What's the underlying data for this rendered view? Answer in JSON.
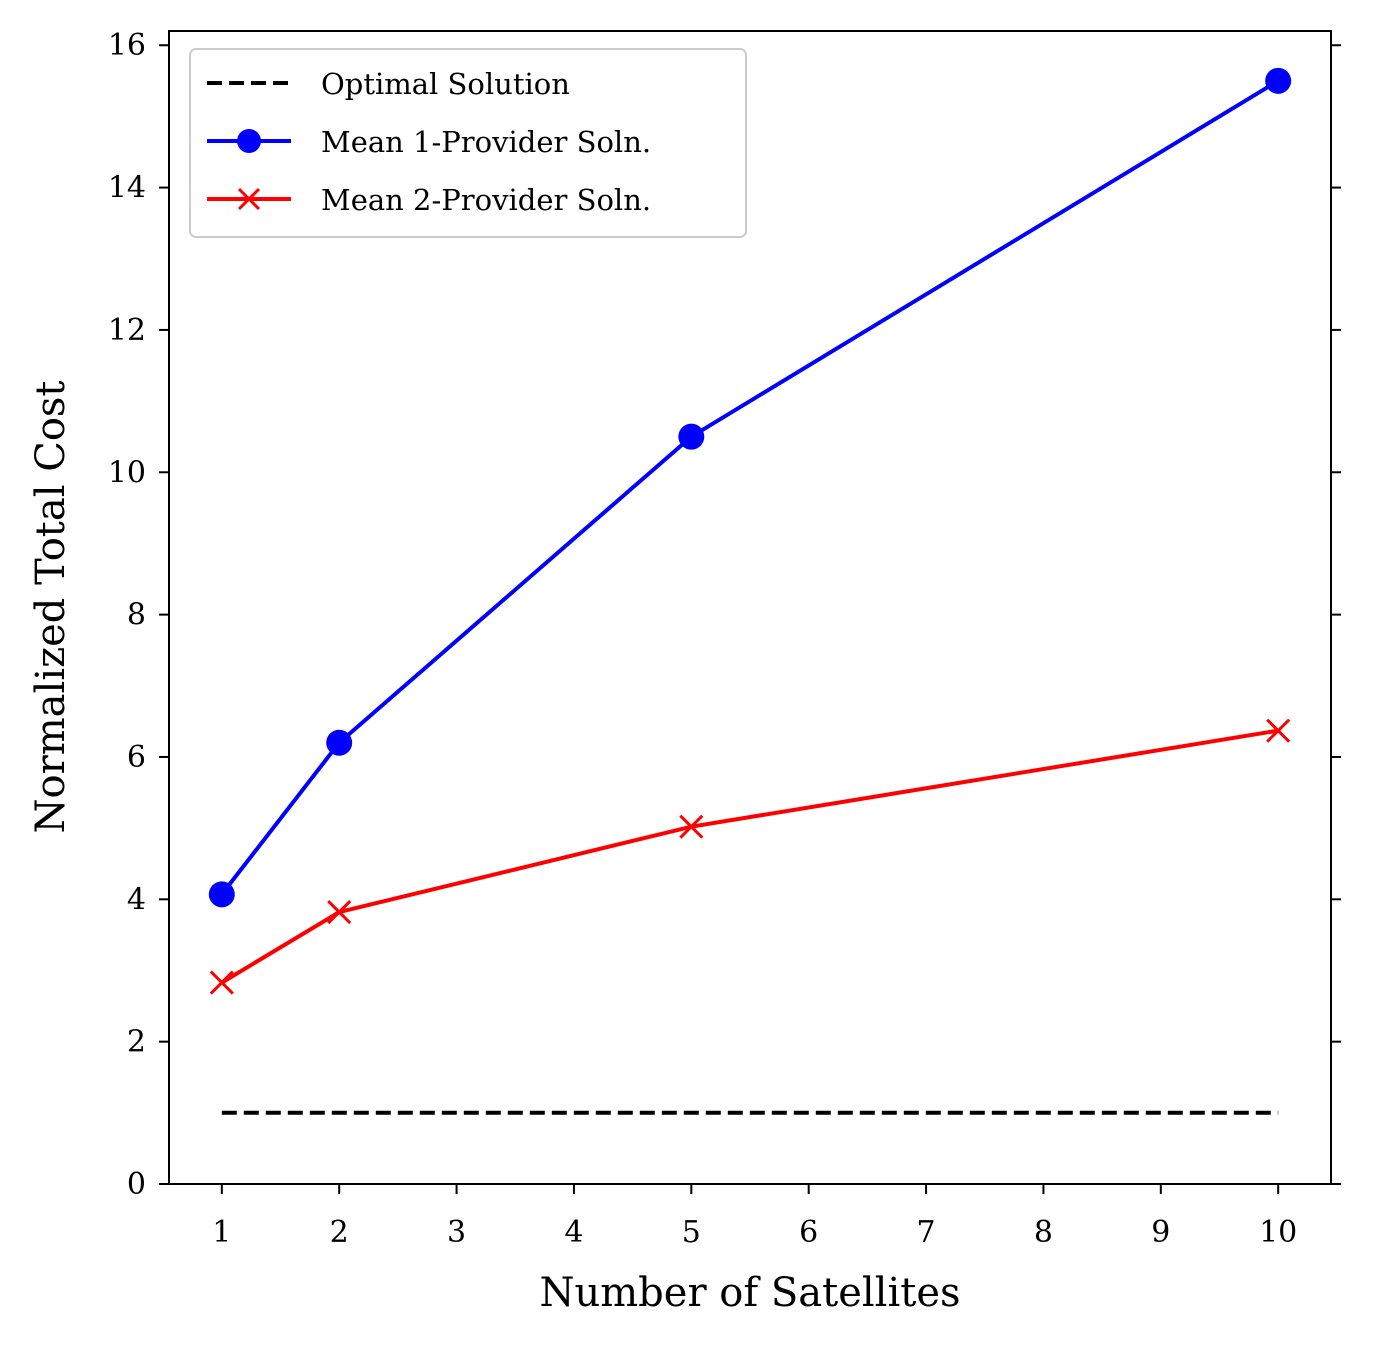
{
  "chart_data": {
    "type": "line",
    "xlabel": "Number of Satellites",
    "ylabel": "Normalized Total Cost",
    "xlim": [
      0.55,
      10.45
    ],
    "ylim": [
      0,
      16.2
    ],
    "xticks": [
      1,
      2,
      3,
      4,
      5,
      6,
      7,
      8,
      9,
      10
    ],
    "xtick_labels": [
      "1",
      "2",
      "3",
      "4",
      "5",
      "6",
      "7",
      "8",
      "9",
      "10"
    ],
    "yticks": [
      0,
      2,
      4,
      6,
      8,
      10,
      12,
      14,
      16
    ],
    "ytick_labels": [
      "0",
      "2",
      "4",
      "6",
      "8",
      "10",
      "12",
      "14",
      "16"
    ],
    "legend_position": "top-left",
    "series": [
      {
        "name": "Optimal Solution",
        "color": "#000000",
        "style": "dashed",
        "marker": "none",
        "x": [
          1,
          10
        ],
        "y": [
          1.0,
          1.0
        ]
      },
      {
        "name": "Mean 1-Provider Soln.",
        "color": "#0000ff",
        "style": "solid",
        "marker": "circle",
        "x": [
          1,
          2,
          5,
          10
        ],
        "y": [
          4.07,
          6.2,
          10.5,
          15.5
        ]
      },
      {
        "name": "Mean 2-Provider Soln.",
        "color": "#ff0000",
        "style": "solid",
        "marker": "x",
        "x": [
          1,
          2,
          5,
          10
        ],
        "y": [
          2.83,
          3.82,
          5.02,
          6.37
        ]
      }
    ]
  }
}
